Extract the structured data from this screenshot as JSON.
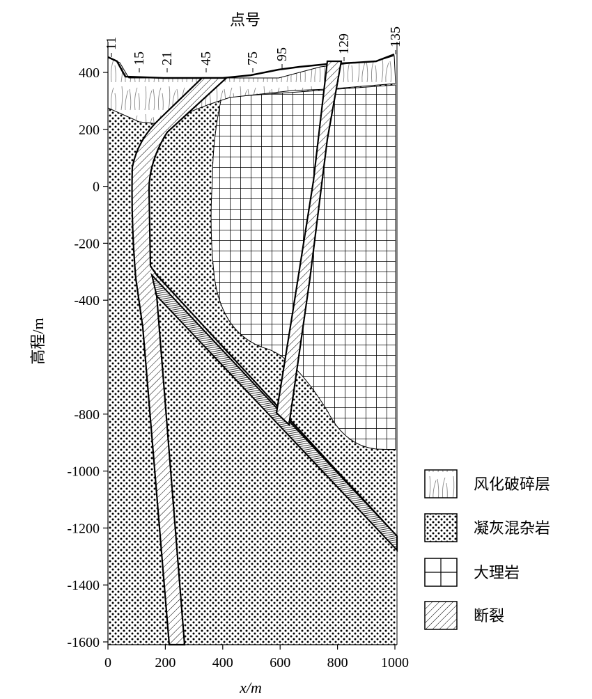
{
  "figure": {
    "top_label": "点号",
    "x_title": "x/m",
    "y_title": "高程/m",
    "x_ticks": [
      "0",
      "200",
      "400",
      "600",
      "800",
      "1000"
    ],
    "y_ticks": [
      "400",
      "200",
      "0",
      "-200",
      "-400",
      "-800",
      "-1000",
      "-1200",
      "-1400",
      "-1600"
    ],
    "point_numbers": [
      "11",
      "15",
      "21",
      "45",
      "75",
      "95",
      "129",
      "135"
    ]
  },
  "legend": [
    {
      "label": "风化破碎层",
      "pattern": "weathered"
    },
    {
      "label": "凝灰混杂岩",
      "pattern": "dots"
    },
    {
      "label": "大理岩",
      "pattern": "grid"
    },
    {
      "label": "断裂",
      "pattern": "hatch"
    }
  ],
  "colors": {
    "ink": "#000000",
    "background": "#ffffff",
    "grass": "#888888"
  }
}
